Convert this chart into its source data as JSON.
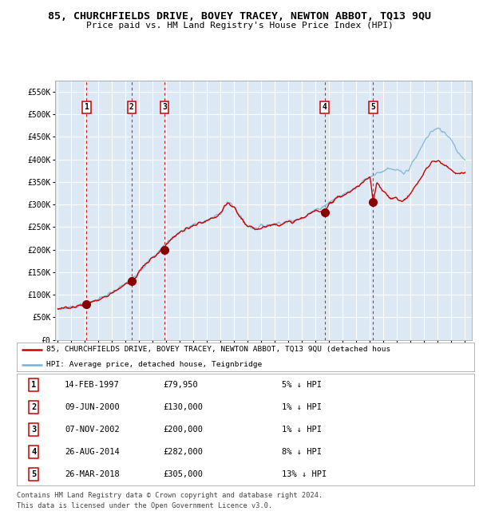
{
  "title": "85, CHURCHFIELDS DRIVE, BOVEY TRACEY, NEWTON ABBOT, TQ13 9QU",
  "subtitle": "Price paid vs. HM Land Registry's House Price Index (HPI)",
  "title_fontsize": 9.5,
  "subtitle_fontsize": 8.0,
  "bg_color": "#dce9f5",
  "plot_bg_color": "#dce9f5",
  "grid_color": "#ffffff",
  "red_line_color": "#cc0000",
  "blue_line_color": "#7ab0d4",
  "sale_marker_color": "#880000",
  "dashed_line_color": "#cc0000",
  "ylim": [
    0,
    575000
  ],
  "yticks": [
    0,
    50000,
    100000,
    150000,
    200000,
    250000,
    300000,
    350000,
    400000,
    450000,
    500000,
    550000
  ],
  "ytick_labels": [
    "£0",
    "£50K",
    "£100K",
    "£150K",
    "£200K",
    "£250K",
    "£300K",
    "£350K",
    "£400K",
    "£450K",
    "£500K",
    "£550K"
  ],
  "xlim_start": 1994.8,
  "xlim_end": 2025.5,
  "xticks": [
    1995,
    1996,
    1997,
    1998,
    1999,
    2000,
    2001,
    2002,
    2003,
    2004,
    2005,
    2006,
    2007,
    2008,
    2009,
    2010,
    2011,
    2012,
    2013,
    2014,
    2015,
    2016,
    2017,
    2018,
    2019,
    2020,
    2021,
    2022,
    2023,
    2024,
    2025
  ],
  "sales": [
    {
      "num": 1,
      "date_label": "14-FEB-1997",
      "date_x": 1997.12,
      "price": 79950,
      "pct": "5%",
      "direction": "↓"
    },
    {
      "num": 2,
      "date_label": "09-JUN-2000",
      "date_x": 2000.44,
      "price": 130000,
      "pct": "1%",
      "direction": "↓"
    },
    {
      "num": 3,
      "date_label": "07-NOV-2002",
      "date_x": 2002.85,
      "price": 200000,
      "pct": "1%",
      "direction": "↓"
    },
    {
      "num": 4,
      "date_label": "26-AUG-2014",
      "date_x": 2014.65,
      "price": 282000,
      "pct": "8%",
      "direction": "↓"
    },
    {
      "num": 5,
      "date_label": "26-MAR-2018",
      "date_x": 2018.23,
      "price": 305000,
      "pct": "13%",
      "direction": "↓"
    }
  ],
  "legend_label_red": "85, CHURCHFIELDS DRIVE, BOVEY TRACEY, NEWTON ABBOT, TQ13 9QU (detached hous",
  "legend_label_blue": "HPI: Average price, detached house, Teignbridge",
  "footer1": "Contains HM Land Registry data © Crown copyright and database right 2024.",
  "footer2": "This data is licensed under the Open Government Licence v3.0.",
  "table_rows": [
    [
      "1",
      "14-FEB-1997",
      "£79,950",
      "5% ↓ HPI"
    ],
    [
      "2",
      "09-JUN-2000",
      "£130,000",
      "1% ↓ HPI"
    ],
    [
      "3",
      "07-NOV-2002",
      "£200,000",
      "1% ↓ HPI"
    ],
    [
      "4",
      "26-AUG-2014",
      "£282,000",
      "8% ↓ HPI"
    ],
    [
      "5",
      "26-MAR-2018",
      "£305,000",
      "13% ↓ HPI"
    ]
  ],
  "hpi_x": [
    1995.0,
    1995.5,
    1996.0,
    1996.5,
    1997.0,
    1997.5,
    1998.0,
    1998.5,
    1999.0,
    1999.5,
    2000.0,
    2000.5,
    2001.0,
    2001.5,
    2002.0,
    2002.5,
    2003.0,
    2003.5,
    2004.0,
    2004.5,
    2005.0,
    2005.5,
    2006.0,
    2006.5,
    2007.0,
    2007.5,
    2008.0,
    2008.5,
    2009.0,
    2009.5,
    2010.0,
    2010.5,
    2011.0,
    2011.5,
    2012.0,
    2012.5,
    2013.0,
    2013.5,
    2014.0,
    2014.5,
    2015.0,
    2015.5,
    2016.0,
    2016.5,
    2017.0,
    2017.5,
    2018.0,
    2018.5,
    2019.0,
    2019.5,
    2020.0,
    2020.5,
    2021.0,
    2021.5,
    2022.0,
    2022.5,
    2023.0,
    2023.5,
    2024.0,
    2024.5,
    2025.0
  ],
  "hpi_y": [
    68000,
    70000,
    73000,
    76000,
    80000,
    85000,
    90000,
    97000,
    105000,
    115000,
    125000,
    138000,
    152000,
    168000,
    183000,
    198000,
    215000,
    228000,
    240000,
    248000,
    255000,
    260000,
    265000,
    272000,
    282000,
    305000,
    295000,
    272000,
    252000,
    248000,
    252000,
    255000,
    258000,
    260000,
    262000,
    265000,
    272000,
    280000,
    288000,
    295000,
    305000,
    315000,
    322000,
    330000,
    340000,
    352000,
    362000,
    370000,
    375000,
    378000,
    375000,
    368000,
    385000,
    410000,
    440000,
    462000,
    468000,
    460000,
    445000,
    415000,
    400000
  ],
  "prop_x": [
    1995.0,
    1995.5,
    1996.0,
    1996.5,
    1997.12,
    1997.5,
    1998.0,
    1998.5,
    1999.0,
    1999.5,
    2000.0,
    2000.44,
    2000.8,
    2001.0,
    2001.5,
    2002.0,
    2002.5,
    2002.85,
    2003.0,
    2003.5,
    2004.0,
    2004.5,
    2005.0,
    2005.5,
    2006.0,
    2006.5,
    2007.0,
    2007.5,
    2008.0,
    2008.5,
    2009.0,
    2009.5,
    2010.0,
    2010.5,
    2011.0,
    2011.5,
    2012.0,
    2012.5,
    2013.0,
    2013.5,
    2014.0,
    2014.65,
    2015.0,
    2015.5,
    2016.0,
    2016.5,
    2017.0,
    2017.5,
    2018.0,
    2018.23,
    2018.5,
    2019.0,
    2019.5,
    2020.0,
    2020.5,
    2021.0,
    2021.5,
    2022.0,
    2022.5,
    2023.0,
    2023.5,
    2024.0,
    2024.5,
    2025.0
  ],
  "prop_y": [
    68000,
    70000,
    73000,
    76000,
    79950,
    84000,
    89000,
    96000,
    104000,
    114000,
    124000,
    130000,
    140000,
    152000,
    168000,
    182000,
    197000,
    200000,
    214000,
    227000,
    238000,
    246000,
    253000,
    258000,
    263000,
    270000,
    280000,
    303000,
    293000,
    270000,
    250000,
    246000,
    250000,
    253000,
    256000,
    258000,
    260000,
    263000,
    270000,
    278000,
    286000,
    282000,
    303000,
    313000,
    320000,
    328000,
    338000,
    350000,
    360000,
    305000,
    348000,
    328000,
    315000,
    313000,
    308000,
    325000,
    348000,
    372000,
    392000,
    398000,
    388000,
    378000,
    368000,
    372000
  ]
}
